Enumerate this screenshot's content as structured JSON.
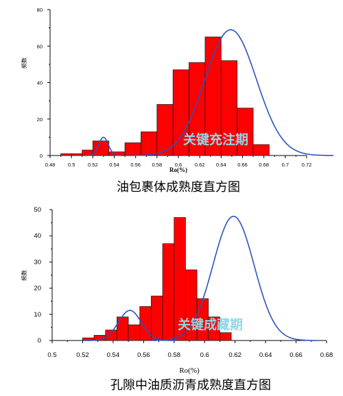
{
  "chart_data": [
    {
      "type": "bar",
      "title": "",
      "caption": "油包裹体成熟度直方图",
      "xlabel": "Ro(%)",
      "ylabel": "频数",
      "xlim": [
        0.48,
        0.72
      ],
      "ylim": [
        0,
        80
      ],
      "x_ticks": [
        "0.48",
        "0.5",
        "0.52",
        "0.54",
        "0.56",
        "0.58",
        "0.6",
        "0.62",
        "0.64",
        "0.66",
        "0.68",
        "0.7",
        "0.72"
      ],
      "y_ticks": [
        "0",
        "20",
        "40",
        "60",
        "80"
      ],
      "bin_edges": [
        0.49,
        0.5,
        0.51,
        0.52,
        0.53,
        0.54,
        0.55,
        0.56,
        0.57,
        0.58,
        0.59,
        0.6,
        0.61,
        0.62,
        0.63,
        0.64,
        0.65,
        0.66,
        0.67,
        0.68,
        0.69,
        0.7,
        0.71
      ],
      "bars": [
        {
          "x0": 0.49,
          "x1": 0.5,
          "value": 1
        },
        {
          "x0": 0.5,
          "x1": 0.51,
          "value": 1
        },
        {
          "x0": 0.51,
          "x1": 0.52,
          "value": 3
        },
        {
          "x0": 0.52,
          "x1": 0.535,
          "value": 8
        },
        {
          "x0": 0.535,
          "x1": 0.55,
          "value": 2
        },
        {
          "x0": 0.55,
          "x1": 0.565,
          "value": 7
        },
        {
          "x0": 0.565,
          "x1": 0.58,
          "value": 13
        },
        {
          "x0": 0.58,
          "x1": 0.595,
          "value": 28
        },
        {
          "x0": 0.595,
          "x1": 0.61,
          "value": 47
        },
        {
          "x0": 0.61,
          "x1": 0.625,
          "value": 51
        },
        {
          "x0": 0.625,
          "x1": 0.64,
          "value": 65
        },
        {
          "x0": 0.64,
          "x1": 0.655,
          "value": 52
        },
        {
          "x0": 0.655,
          "x1": 0.67,
          "value": 26
        },
        {
          "x0": 0.67,
          "x1": 0.685,
          "value": 6
        }
      ],
      "curves": [
        {
          "mean": 0.53,
          "sd": 0.0045,
          "peak": 10
        },
        {
          "mean": 0.649,
          "sd": 0.024,
          "peak": 69
        }
      ],
      "annotation": "关键充注期",
      "bar_color": "#ff0000",
      "curve_color": "#2a52be"
    },
    {
      "type": "bar",
      "title": "",
      "caption": "孔隙中油质沥青成熟度直方图",
      "xlabel": "Ro(%)",
      "ylabel": "频数",
      "xlim": [
        0.5,
        0.68
      ],
      "ylim": [
        0,
        50
      ],
      "x_ticks": [
        "0.5",
        "0.52",
        "0.54",
        "0.56",
        "0.58",
        "0.6",
        "0.62",
        "0.64",
        "0.66",
        "0.68"
      ],
      "y_ticks": [
        "0",
        "10",
        "20",
        "30",
        "40",
        "50"
      ],
      "bars": [
        {
          "x0": 0.52,
          "x1": 0.5275,
          "value": 1
        },
        {
          "x0": 0.5275,
          "x1": 0.535,
          "value": 2
        },
        {
          "x0": 0.535,
          "x1": 0.5425,
          "value": 4
        },
        {
          "x0": 0.5425,
          "x1": 0.55,
          "value": 9
        },
        {
          "x0": 0.55,
          "x1": 0.5575,
          "value": 6
        },
        {
          "x0": 0.5575,
          "x1": 0.565,
          "value": 13
        },
        {
          "x0": 0.565,
          "x1": 0.5725,
          "value": 17
        },
        {
          "x0": 0.5725,
          "x1": 0.58,
          "value": 37
        },
        {
          "x0": 0.58,
          "x1": 0.5875,
          "value": 47
        },
        {
          "x0": 0.5875,
          "x1": 0.595,
          "value": 27
        },
        {
          "x0": 0.595,
          "x1": 0.6025,
          "value": 16
        },
        {
          "x0": 0.6025,
          "x1": 0.61,
          "value": 9
        },
        {
          "x0": 0.61,
          "x1": 0.6175,
          "value": 3
        }
      ],
      "curves": [
        {
          "mean": 0.551,
          "sd": 0.0075,
          "peak": 11.5
        },
        {
          "mean": 0.619,
          "sd": 0.0135,
          "peak": 47.5
        }
      ],
      "annotation": "关键成藏期",
      "bar_color": "#ff0000",
      "curve_color": "#2a52be"
    }
  ]
}
